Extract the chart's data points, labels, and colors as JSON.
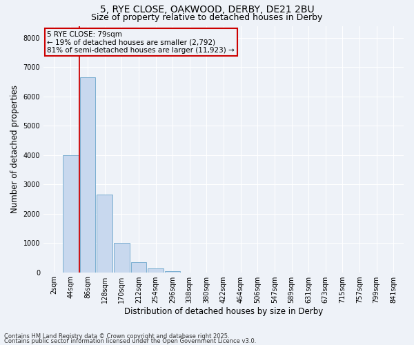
{
  "title1": "5, RYE CLOSE, OAKWOOD, DERBY, DE21 2BU",
  "title2": "Size of property relative to detached houses in Derby",
  "xlabel": "Distribution of detached houses by size in Derby",
  "ylabel": "Number of detached properties",
  "categories": [
    "2sqm",
    "44sqm",
    "86sqm",
    "128sqm",
    "170sqm",
    "212sqm",
    "254sqm",
    "296sqm",
    "338sqm",
    "380sqm",
    "422sqm",
    "464sqm",
    "506sqm",
    "547sqm",
    "589sqm",
    "631sqm",
    "673sqm",
    "715sqm",
    "757sqm",
    "799sqm",
    "841sqm"
  ],
  "values": [
    0,
    4000,
    6650,
    2650,
    1000,
    350,
    120,
    30,
    0,
    0,
    0,
    0,
    0,
    0,
    0,
    0,
    0,
    0,
    0,
    0,
    0
  ],
  "bar_color": "#c8d8ee",
  "bar_edge_color": "#7aaed0",
  "vline_pos": 1.5,
  "vline_color": "#cc0000",
  "annotation_text": "5 RYE CLOSE: 79sqm\n← 19% of detached houses are smaller (2,792)\n81% of semi-detached houses are larger (11,923) →",
  "annotation_box_color": "#cc0000",
  "ylim": [
    0,
    8400
  ],
  "yticks": [
    0,
    1000,
    2000,
    3000,
    4000,
    5000,
    6000,
    7000,
    8000
  ],
  "footnote1": "Contains HM Land Registry data © Crown copyright and database right 2025.",
  "footnote2": "Contains public sector information licensed under the Open Government Licence v3.0.",
  "background_color": "#eef2f8",
  "grid_color": "#ffffff",
  "title_fontsize": 10,
  "subtitle_fontsize": 9,
  "axis_label_fontsize": 8.5,
  "tick_fontsize": 7,
  "annotation_fontsize": 7.5,
  "footnote_fontsize": 6
}
